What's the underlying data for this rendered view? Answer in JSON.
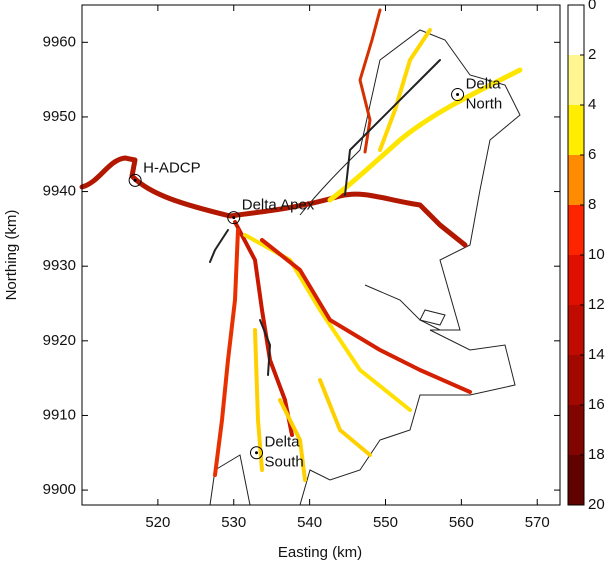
{
  "chart_data": {
    "type": "map",
    "xlabel": "Easting (km)",
    "ylabel": "Northing (km)",
    "xlim": [
      510,
      573
    ],
    "xticks": [
      520,
      530,
      540,
      550,
      560,
      570
    ],
    "ylim": [
      9898,
      9965
    ],
    "yticks": [
      9900,
      9910,
      9920,
      9930,
      9940,
      9950,
      9960
    ],
    "colorbar": {
      "lim": [
        0,
        20
      ],
      "ticks": [
        0,
        2,
        4,
        6,
        8,
        10,
        12,
        14,
        16,
        18,
        20
      ],
      "colors": [
        "#ffffff",
        "#fff68f",
        "#ffee00",
        "#ff8c00",
        "#ff2400",
        "#e01000",
        "#c00c00",
        "#a00800",
        "#800500",
        "#600300"
      ]
    },
    "annotations": [
      {
        "lines": [
          "H-ADCP"
        ],
        "x": 517,
        "y": 9941.5
      },
      {
        "lines": [
          "Delta Apex"
        ],
        "x": 530,
        "y": 9936.5
      },
      {
        "lines": [
          "Delta",
          "North"
        ],
        "x": 559.5,
        "y": 9953
      },
      {
        "lines": [
          "Delta",
          "South"
        ],
        "x": 533,
        "y": 9905
      }
    ]
  }
}
